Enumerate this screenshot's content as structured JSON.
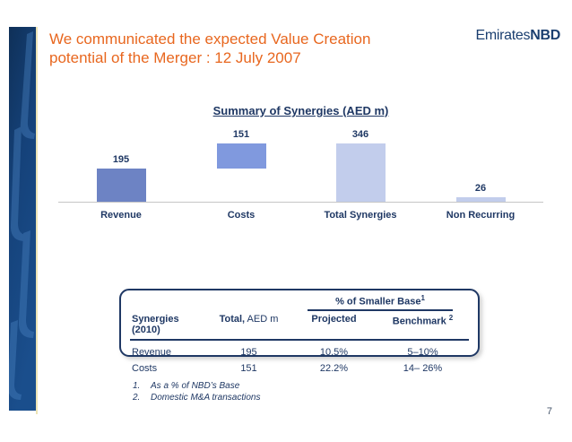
{
  "slide": {
    "title_line1": "We communicated the expected Value Creation",
    "title_line2": "potential of the Merger : 12 July 2007",
    "logo_emirates": "Emirates",
    "logo_nbd": "NBD",
    "page_number": "7"
  },
  "colors": {
    "title_orange": "#E8671F",
    "navy_text": "#1F3864",
    "bar_revenue": "#6D83C4",
    "bar_costs": "#8099DE",
    "bar_light": "#C2CDEC",
    "axis_gray": "#C6C6C6",
    "sidebar_navy": "#133A6B",
    "sidebar_edge": "#EDE4B5"
  },
  "chart_data": {
    "type": "bar",
    "subtype": "waterfall",
    "title": "Summary of Synergies (AED m)",
    "categories": [
      "Revenue",
      "Costs",
      "Total Synergies",
      "Non Recurring"
    ],
    "values": [
      195,
      151,
      346,
      26
    ],
    "ylim": [
      0,
      380
    ],
    "grid": false,
    "legend": false,
    "waterfall_segments": [
      {
        "label": "Revenue",
        "value": 195,
        "start": 0,
        "end": 195,
        "color": "#6D83C4"
      },
      {
        "label": "Costs",
        "value": 151,
        "start": 195,
        "end": 346,
        "color": "#8099DE"
      },
      {
        "label": "Total Synergies",
        "value": 346,
        "start": 0,
        "end": 346,
        "color": "#C2CDEC"
      },
      {
        "label": "Non Recurring",
        "value": 26,
        "start": 0,
        "end": 26,
        "color": "#C2CDEC"
      }
    ]
  },
  "table": {
    "group_header": "% of Smaller Base",
    "group_header_sup": "1",
    "col_synergies": "Synergies (2010)",
    "col_total_bold": "Total,",
    "col_total_rest": " AED m",
    "col_projected": "Projected",
    "col_benchmark": "Benchmark ",
    "col_benchmark_sup": "2",
    "rows": [
      {
        "name": "Revenue",
        "total": "195",
        "projected": "10.5%",
        "benchmark": "5–10%"
      },
      {
        "name": "Costs",
        "total": "151",
        "projected": "22.2%",
        "benchmark": "14– 26%"
      }
    ]
  },
  "footnotes": [
    {
      "num": "1.",
      "text": "As a % of NBD’s Base"
    },
    {
      "num": "2.",
      "text": "Domestic M&A transactions"
    }
  ]
}
